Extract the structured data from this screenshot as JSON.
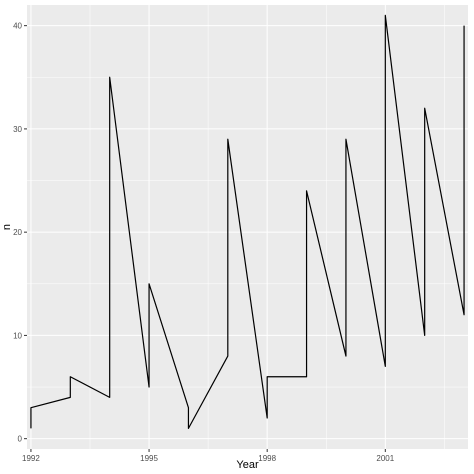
{
  "chart_data": {
    "type": "line",
    "title": "",
    "xlabel": "Year",
    "ylabel": "n",
    "xlim": [
      1991.9,
      2003.1
    ],
    "ylim": [
      -1,
      42
    ],
    "grid": true,
    "x_ticks": [
      {
        "value": 1992,
        "label": "1992"
      },
      {
        "value": 1995,
        "label": "1995"
      },
      {
        "value": 1998,
        "label": "1998"
      },
      {
        "value": 2001,
        "label": "2001"
      }
    ],
    "y_ticks": [
      {
        "value": 0,
        "label": "0"
      },
      {
        "value": 10,
        "label": "10"
      },
      {
        "value": 20,
        "label": "20"
      },
      {
        "value": 30,
        "label": "30"
      },
      {
        "value": 40,
        "label": "40"
      }
    ],
    "series": [
      {
        "points": [
          [
            1992.0,
            1
          ],
          [
            1992.0,
            3
          ],
          [
            1993.0,
            4
          ],
          [
            1993.0,
            6
          ],
          [
            1994.0,
            4
          ],
          [
            1994.0,
            35
          ],
          [
            1995.0,
            5
          ],
          [
            1995.0,
            15
          ],
          [
            1996.0,
            3
          ],
          [
            1996.0,
            1
          ],
          [
            1997.0,
            8
          ],
          [
            1997.0,
            29
          ],
          [
            1998.0,
            2
          ],
          [
            1998.0,
            6
          ],
          [
            1999.0,
            6
          ],
          [
            1999.0,
            24
          ],
          [
            2000.0,
            8
          ],
          [
            2000.0,
            29
          ],
          [
            2001.0,
            7
          ],
          [
            2001.0,
            41
          ],
          [
            2002.0,
            10
          ],
          [
            2002.0,
            32
          ],
          [
            2003.0,
            12
          ],
          [
            2003.0,
            40
          ]
        ],
        "color": "#000000"
      }
    ],
    "panel_background": "#ebebeb",
    "grid_color": "#ffffff"
  }
}
